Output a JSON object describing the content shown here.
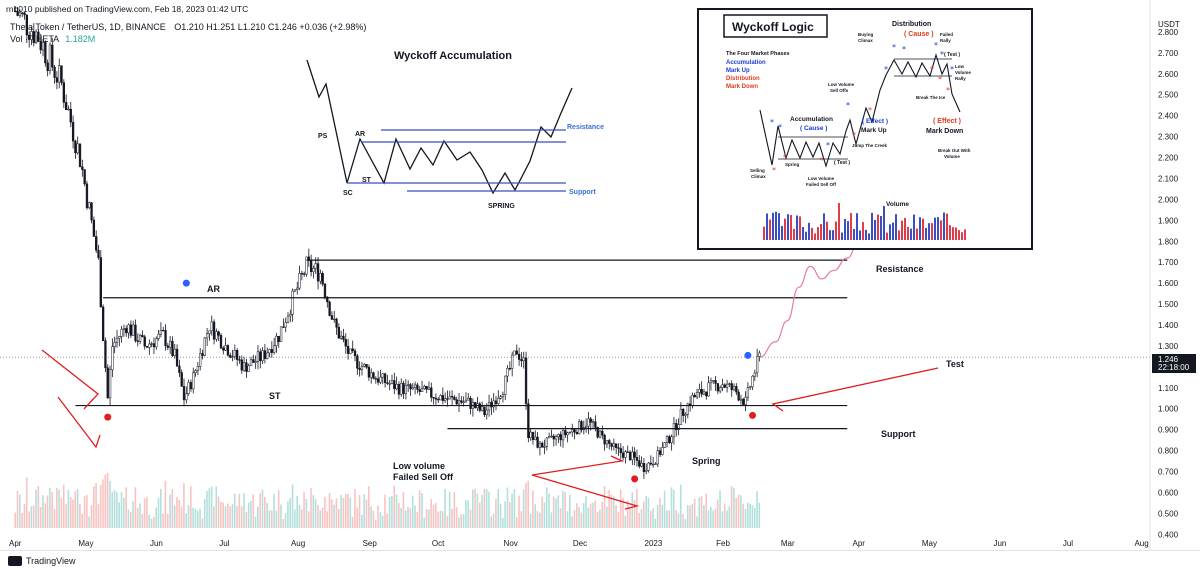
{
  "header": {
    "publisher": "rnb010 published on TradingView.com, Feb 18, 2023 01:42 UTC",
    "symbol": "Theta Token / TetherUS, 1D, BINANCE",
    "ohlc": "O1.210 H1.251 L1.210 C1.246 +0.036 (+2.98%)",
    "volume_label": "Vol · THETA",
    "volume_value": "1.182M"
  },
  "footer": {
    "brand": "TradingView"
  },
  "price_axis": {
    "currency": "USDT",
    "last_price": "1.246",
    "countdown": "22:18:00"
  },
  "colors": {
    "up": "#26a69a",
    "down": "#ef5350",
    "line": "#131722",
    "projection": "#e57ba0",
    "marker_blue": "#2962ff",
    "marker_red": "#e01e1e"
  },
  "annotations": {
    "ar": "AR",
    "st": "ST",
    "resistance": "Resistance",
    "support": "Support",
    "test": "Test",
    "spring": "Spring",
    "low_volume_1": "Low volume",
    "low_volume_2": "Failed Sell Off"
  },
  "inset_accumulation": {
    "title": "Wyckoff Accumulation",
    "ps": "PS",
    "ar": "AR",
    "sc": "SC",
    "st": "ST",
    "spring": "SPRING",
    "resistance": "Resistance",
    "support": "Support"
  },
  "inset_logic": {
    "title": "Wyckoff Logic",
    "phases_title": "The Four Market Phases",
    "phases": [
      "Accumulation",
      "Mark Up",
      "Distribution",
      "Mark Down"
    ],
    "phase_colors": [
      "#1a3bd6",
      "#1a3bd6",
      "#e03c1e",
      "#e03c1e"
    ],
    "distribution": "Distribution",
    "cause": "( Cause )",
    "accumulation": "Accumulation",
    "effect": "( Effect )",
    "mark_up": "Mark Up",
    "mark_down": "Mark Down",
    "buying_climax_1": "Buying",
    "buying_climax_2": "Climax",
    "failed_rally_1": "Failed",
    "failed_rally_2": "Rally",
    "test": "( Test )",
    "low_rally_1": "Low",
    "low_rally_2": "Volume",
    "low_rally_3": "Rally",
    "low_volume_selloffs_1": "Low Volume",
    "low_volume_selloffs_2": "Sell Offs",
    "break_ice": "Break The Ice",
    "jump_creek": "Jump The Creek",
    "spring": "Spring",
    "selling_climax_1": "Selling",
    "selling_climax_2": "Climax",
    "low_vol_failed_1": "Low Volume",
    "low_vol_failed_2": "Failed Sell Off",
    "breakout_1": "Break Out With",
    "breakout_2": "Volume",
    "volume": "Volume"
  },
  "chart_data": {
    "type": "candlestick",
    "title": "Theta Token / TetherUS, 1D, BINANCE",
    "xlabel": "",
    "ylabel": "USDT",
    "x_ticks": [
      "Apr",
      "May",
      "Jun",
      "Jul",
      "Aug",
      "Sep",
      "Oct",
      "Nov",
      "Dec",
      "2023",
      "Feb",
      "Mar",
      "Apr",
      "May",
      "Jun",
      "Jul",
      "Aug"
    ],
    "y_ticks": [
      "0.400",
      "0.500",
      "0.600",
      "0.700",
      "0.800",
      "0.900",
      "1.000",
      "1.100",
      "1.200",
      "1.300",
      "1.400",
      "1.500",
      "1.600",
      "1.700",
      "1.800",
      "1.900",
      "2.000",
      "2.100",
      "2.200",
      "2.300",
      "2.400",
      "2.500",
      "2.600",
      "2.700",
      "2.800"
    ],
    "ylim": [
      0.38,
      2.9
    ],
    "last_close": 1.246,
    "levels": [
      {
        "label": "Resistance",
        "price": 1.71,
        "from": "2022-08-06",
        "to": "2023-03-28"
      },
      {
        "label": "",
        "price": 1.53,
        "from": "2022-05-10",
        "to": "2023-03-28"
      },
      {
        "label": "Support",
        "price": 1.015,
        "from": "2022-04-28",
        "to": "2023-03-28"
      },
      {
        "label": "",
        "price": 0.905,
        "from": "2022-10-06",
        "to": "2023-03-28"
      }
    ],
    "path": [
      [
        "2022-04-02",
        2.9
      ],
      [
        "2022-04-12",
        2.78
      ],
      [
        "2022-04-22",
        2.55
      ],
      [
        "2022-04-30",
        2.2
      ],
      [
        "2022-05-04",
        1.95
      ],
      [
        "2022-05-08",
        1.7
      ],
      [
        "2022-05-10",
        1.35
      ],
      [
        "2022-05-12",
        1.05
      ],
      [
        "2022-05-14",
        1.3
      ],
      [
        "2022-05-20",
        1.4
      ],
      [
        "2022-05-28",
        1.3
      ],
      [
        "2022-06-05",
        1.35
      ],
      [
        "2022-06-10",
        1.25
      ],
      [
        "2022-06-14",
        1.05
      ],
      [
        "2022-06-18",
        1.15
      ],
      [
        "2022-06-25",
        1.4
      ],
      [
        "2022-07-02",
        1.3
      ],
      [
        "2022-07-10",
        1.2
      ],
      [
        "2022-07-18",
        1.25
      ],
      [
        "2022-07-25",
        1.35
      ],
      [
        "2022-08-01",
        1.55
      ],
      [
        "2022-08-06",
        1.68
      ],
      [
        "2022-08-12",
        1.65
      ],
      [
        "2022-08-18",
        1.4
      ],
      [
        "2022-08-25",
        1.25
      ],
      [
        "2022-09-05",
        1.15
      ],
      [
        "2022-09-15",
        1.1
      ],
      [
        "2022-09-25",
        1.08
      ],
      [
        "2022-10-05",
        1.05
      ],
      [
        "2022-10-15",
        1.03
      ],
      [
        "2022-10-22",
        0.98
      ],
      [
        "2022-10-30",
        1.1
      ],
      [
        "2022-11-05",
        1.28
      ],
      [
        "2022-11-08",
        1.22
      ],
      [
        "2022-11-10",
        0.88
      ],
      [
        "2022-11-15",
        0.82
      ],
      [
        "2022-11-22",
        0.86
      ],
      [
        "2022-11-30",
        0.9
      ],
      [
        "2022-12-06",
        0.94
      ],
      [
        "2022-12-12",
        0.86
      ],
      [
        "2022-12-18",
        0.8
      ],
      [
        "2022-12-25",
        0.77
      ],
      [
        "2022-12-30",
        0.72
      ],
      [
        "2023-01-04",
        0.76
      ],
      [
        "2023-01-10",
        0.86
      ],
      [
        "2023-01-15",
        0.97
      ],
      [
        "2023-01-20",
        1.05
      ],
      [
        "2023-01-27",
        1.1
      ],
      [
        "2023-02-02",
        1.12
      ],
      [
        "2023-02-08",
        1.08
      ],
      [
        "2023-02-12",
        1.03
      ],
      [
        "2023-02-15",
        1.15
      ],
      [
        "2023-02-18",
        1.246
      ]
    ],
    "projection": [
      [
        "2023-02-18",
        1.246
      ],
      [
        "2023-02-25",
        1.32
      ],
      [
        "2023-03-02",
        1.42
      ],
      [
        "2023-03-07",
        1.58
      ],
      [
        "2023-03-12",
        1.68
      ],
      [
        "2023-03-17",
        1.62
      ],
      [
        "2023-03-22",
        1.66
      ],
      [
        "2023-03-28",
        1.72
      ],
      [
        "2023-04-02",
        1.8
      ]
    ],
    "markers": [
      {
        "type": "blue",
        "date": "2022-06-15",
        "price": 1.6
      },
      {
        "type": "red",
        "date": "2022-05-12",
        "price": 0.96
      },
      {
        "type": "blue",
        "date": "2023-02-13",
        "price": 1.255
      },
      {
        "type": "red",
        "date": "2023-02-15",
        "price": 0.968
      },
      {
        "type": "red",
        "date": "2022-12-26",
        "price": 0.665
      }
    ]
  }
}
